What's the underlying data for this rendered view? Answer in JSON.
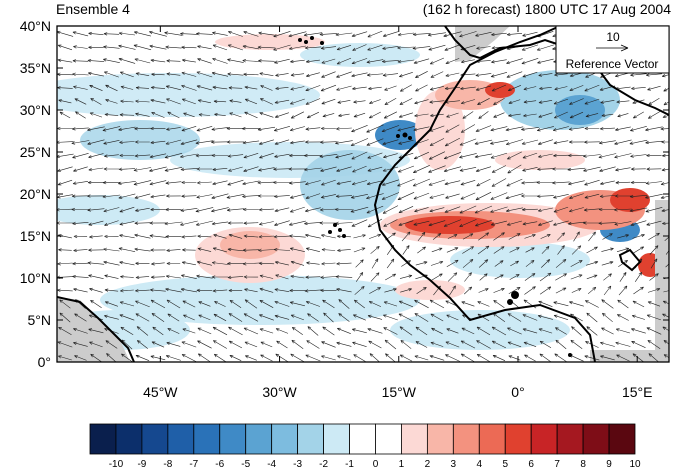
{
  "header": {
    "title_left": "Ensemble 4",
    "title_right": "(162 h forecast) 1800 UTC 17 Aug 2004"
  },
  "axes": {
    "lat_labels": [
      "0°",
      "5°N",
      "10°N",
      "15°N",
      "20°N",
      "25°N",
      "30°N",
      "35°N",
      "40°N"
    ],
    "lat_values": [
      0,
      5,
      10,
      15,
      20,
      25,
      30,
      35,
      40
    ],
    "lon_labels": [
      "45°W",
      "30°W",
      "15°W",
      "0°",
      "15°E"
    ],
    "lon_values": [
      -45,
      -30,
      -15,
      0,
      15
    ],
    "lon_range": [
      -58,
      19
    ],
    "lat_range": [
      0,
      40
    ]
  },
  "reference_vector": {
    "magnitude": "10",
    "label": "Reference Vector"
  },
  "colorbar": {
    "labels": [
      "-10",
      "-9",
      "-8",
      "-7",
      "-6",
      "-5",
      "-4",
      "-3",
      "-2",
      "-1",
      "0",
      "1",
      "2",
      "3",
      "4",
      "5",
      "6",
      "7",
      "8",
      "9",
      "10"
    ],
    "colors": [
      "#0a1f4d",
      "#0c2f6b",
      "#15488f",
      "#1f5fa8",
      "#2a72b8",
      "#3f8ac6",
      "#5ba3d2",
      "#7dbcdf",
      "#a3d3e8",
      "#cdeaf5",
      "#ffffff",
      "#ffffff",
      "#fcd9d5",
      "#f8b6a8",
      "#f3927f",
      "#ec6a55",
      "#e0412f",
      "#c82426",
      "#a51820",
      "#7e0d17",
      "#5a0710"
    ]
  },
  "colors": {
    "land_gray": "#cccccc",
    "coast": "#000000"
  }
}
